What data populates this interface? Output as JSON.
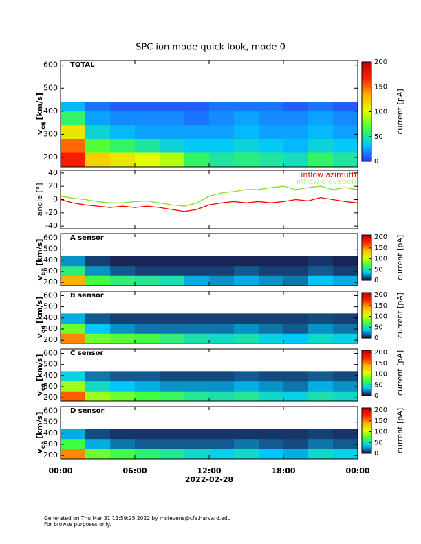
{
  "chart_data": [
    {
      "type": "heatmap",
      "title": "SPC ion mode quick look, mode 0",
      "panel_label": "TOTAL",
      "ylabel": "v",
      "ylabel_sub": "eq",
      "ylabel_unit": "[km/s]",
      "ylim": [
        158,
        620
      ],
      "yticks": [
        200,
        300,
        400,
        500,
        600
      ],
      "xbins": [
        0,
        2,
        4,
        6,
        8,
        10,
        12,
        14,
        16,
        18,
        20,
        22,
        24
      ],
      "ybins": [
        160,
        220,
        280,
        340,
        400,
        440
      ],
      "z": [
        [
          170,
          120,
          110,
          100,
          90,
          60,
          50,
          55,
          50,
          45,
          60,
          50
        ],
        [
          150,
          70,
          60,
          50,
          40,
          35,
          35,
          40,
          35,
          30,
          40,
          35
        ],
        [
          110,
          40,
          30,
          25,
          25,
          25,
          25,
          30,
          25,
          25,
          30,
          25
        ],
        [
          60,
          25,
          20,
          20,
          20,
          15,
          20,
          25,
          20,
          20,
          25,
          20
        ],
        [
          30,
          15,
          10,
          10,
          10,
          10,
          15,
          15,
          15,
          10,
          15,
          10
        ]
      ],
      "colormap": [
        "#3030ff",
        "#00c8ff",
        "#40ff40",
        "#e0ff00",
        "#ffb000",
        "#ff2000",
        "#c00000"
      ],
      "clim": [
        0,
        200
      ],
      "cticks": [
        0,
        50,
        100,
        150,
        200
      ],
      "clabel": "current [pA]"
    },
    {
      "type": "line",
      "ylabel": "angle [°]",
      "ylim": [
        -44,
        44
      ],
      "yticks": [
        -40,
        -20,
        0,
        20,
        40
      ],
      "x": [
        0,
        1,
        2,
        3,
        4,
        5,
        6,
        7,
        8,
        9,
        10,
        11,
        12,
        13,
        14,
        15,
        16,
        17,
        18,
        19,
        20,
        21,
        22,
        23,
        24
      ],
      "series": [
        {
          "name": "inflow azimuth",
          "color": "#ff0000",
          "values": [
            0,
            -5,
            -8,
            -10,
            -12,
            -10,
            -12,
            -10,
            -12,
            -15,
            -18,
            -15,
            -8,
            -5,
            -3,
            -5,
            -3,
            -5,
            -3,
            0,
            -2,
            3,
            0,
            -3,
            -5
          ]
        },
        {
          "name": "inflow elevation",
          "color": "#80e020",
          "values": [
            5,
            2,
            0,
            -3,
            -5,
            -5,
            -3,
            -2,
            -5,
            -8,
            -10,
            -5,
            5,
            10,
            12,
            15,
            15,
            18,
            20,
            15,
            18,
            20,
            15,
            18,
            15
          ]
        }
      ]
    },
    {
      "type": "heatmap",
      "panel_label": "A sensor",
      "ylabel": "v",
      "ylabel_sub": "eq",
      "ylabel_unit": "[km/s]",
      "ylim": [
        170,
        640
      ],
      "yticks": [
        200,
        300,
        400,
        500,
        600
      ],
      "xbins": [
        0,
        2,
        4,
        6,
        8,
        10,
        12,
        14,
        16,
        18,
        20,
        22,
        24
      ],
      "ybins": [
        170,
        260,
        350,
        440
      ],
      "z": [
        [
          140,
          70,
          60,
          55,
          50,
          30,
          25,
          30,
          25,
          20,
          35,
          30
        ],
        [
          60,
          25,
          15,
          10,
          10,
          10,
          10,
          15,
          10,
          10,
          15,
          10
        ],
        [
          25,
          10,
          5,
          5,
          5,
          5,
          5,
          5,
          5,
          5,
          8,
          5
        ]
      ],
      "colormap": [
        "#1e0a3c",
        "#00c8ff",
        "#40ff40",
        "#e0ff00",
        "#ffb000",
        "#ff2000",
        "#c00000"
      ],
      "clim": [
        0,
        210
      ],
      "cticks": [
        0,
        50,
        100,
        150,
        200
      ],
      "clabel": "current [pA]"
    },
    {
      "type": "heatmap",
      "panel_label": "B sensor",
      "ylabel": "v",
      "ylabel_sub": "eq",
      "ylabel_unit": "[km/s]",
      "ylim": [
        170,
        640
      ],
      "yticks": [
        200,
        300,
        400,
        500,
        600
      ],
      "xbins": [
        0,
        2,
        4,
        6,
        8,
        10,
        12,
        14,
        16,
        18,
        20,
        22,
        24
      ],
      "ybins": [
        170,
        260,
        350,
        440
      ],
      "z": [
        [
          150,
          80,
          75,
          70,
          60,
          50,
          45,
          50,
          40,
          35,
          45,
          40
        ],
        [
          80,
          35,
          25,
          20,
          20,
          20,
          20,
          25,
          20,
          15,
          25,
          20
        ],
        [
          30,
          15,
          10,
          10,
          10,
          10,
          10,
          10,
          10,
          10,
          12,
          10
        ]
      ],
      "colormap": [
        "#1e0a3c",
        "#00c8ff",
        "#40ff40",
        "#e0ff00",
        "#ffb000",
        "#ff2000",
        "#c00000"
      ],
      "clim": [
        0,
        210
      ],
      "cticks": [
        0,
        50,
        100,
        150,
        200
      ],
      "clabel": "current [pA]"
    },
    {
      "type": "heatmap",
      "panel_label": "C sensor",
      "ylabel": "v",
      "ylabel_sub": "eq",
      "ylabel_unit": "[km/s]",
      "ylim": [
        170,
        640
      ],
      "yticks": [
        200,
        300,
        400,
        500,
        600
      ],
      "xbins": [
        0,
        2,
        4,
        6,
        8,
        10,
        12,
        14,
        16,
        18,
        20,
        22,
        24
      ],
      "ybins": [
        170,
        260,
        350,
        440
      ],
      "z": [
        [
          160,
          90,
          80,
          70,
          65,
          55,
          50,
          55,
          45,
          40,
          50,
          45
        ],
        [
          90,
          45,
          35,
          30,
          25,
          25,
          25,
          30,
          25,
          20,
          30,
          25
        ],
        [
          40,
          20,
          15,
          15,
          12,
          12,
          12,
          15,
          12,
          12,
          15,
          12
        ]
      ],
      "colormap": [
        "#1e0a3c",
        "#00c8ff",
        "#40ff40",
        "#e0ff00",
        "#ffb000",
        "#ff2000",
        "#c00000"
      ],
      "clim": [
        0,
        210
      ],
      "cticks": [
        0,
        50,
        100,
        150,
        200
      ],
      "clabel": "current [pA]"
    },
    {
      "type": "heatmap",
      "panel_label": "D sensor",
      "ylabel": "v",
      "ylabel_sub": "eq",
      "ylabel_unit": "[km/s]",
      "ylim": [
        170,
        640
      ],
      "yticks": [
        200,
        300,
        400,
        500,
        600
      ],
      "xbins": [
        0,
        2,
        4,
        6,
        8,
        10,
        12,
        14,
        16,
        18,
        20,
        22,
        24
      ],
      "ybins": [
        170,
        260,
        350,
        440
      ],
      "z": [
        [
          150,
          80,
          70,
          60,
          55,
          45,
          40,
          45,
          35,
          30,
          45,
          40
        ],
        [
          70,
          30,
          20,
          15,
          15,
          15,
          15,
          20,
          15,
          12,
          20,
          15
        ],
        [
          30,
          12,
          8,
          8,
          8,
          8,
          8,
          8,
          8,
          8,
          10,
          8
        ]
      ],
      "colormap": [
        "#1e0a3c",
        "#00c8ff",
        "#40ff40",
        "#e0ff00",
        "#ffb000",
        "#ff2000",
        "#c00000"
      ],
      "clim": [
        0,
        210
      ],
      "cticks": [
        0,
        50,
        100,
        150,
        200
      ],
      "clabel": "current [pA]",
      "xlim": [
        0,
        24
      ],
      "xticks": [
        {
          "value": 0,
          "label": "00:00"
        },
        {
          "value": 6,
          "label": "06:00"
        },
        {
          "value": 12,
          "label": "12:00"
        },
        {
          "value": 18,
          "label": "18:00"
        },
        {
          "value": 24,
          "label": "00:00"
        }
      ],
      "xlabel": "2022-02-28"
    }
  ],
  "footer": [
    "Generated on Thu Mar 31 11:59:25 2022 by mstevens@cfa.harvard.edu",
    "For browse purposes only."
  ]
}
